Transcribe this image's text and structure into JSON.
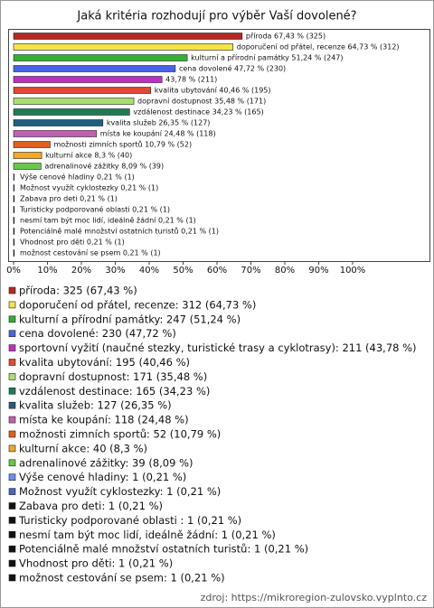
{
  "chart_data": {
    "type": "bar",
    "orientation": "horizontal",
    "title": "Jaká kritéria rozhodují pro výběr Vaší dovolené?",
    "values": [
      67.43,
      64.73,
      51.24,
      47.72,
      43.78,
      40.46,
      35.48,
      34.23,
      26.35,
      24.48,
      10.79,
      8.3,
      8.09,
      0.21,
      0.21,
      0.21,
      0.21,
      0.21,
      0.21,
      0.21,
      0.21
    ],
    "value_labels": [
      "příroda 67,43 % (325)",
      "doporučení od přátel, recenze 64,73 % (312)",
      "kulturní a přírodní památky 51,24 % (247)",
      "cena dovolené 47,72 % (230)",
      "43,78 % (211)",
      "kvalita ubytování 40,46 % (195)",
      "dopravní dostupnost 35,48 % (171)",
      "vzdálenost destinace 34,23 % (165)",
      "kvalita služeb 26,35 % (127)",
      "místa ke koupání 24,48 % (118)",
      "možnosti zimních sportů 10,79 % (52)",
      "kulturní akce 8,3 % (40)",
      "adrenalinové zážitky 8,09 % (39)",
      "Výše cenové hladiny 0,21 % (1)",
      "Možnost využít cyklostezky 0,21 % (1)",
      "Zabava pro deti 0,21 % (1)",
      "Turisticky podporované oblasti  0,21 % (1)",
      "nesmí tam být moc lidí, ideálně žádní  0,21 % (1)",
      "Potenciálně malé množství ostatních turistů 0,21 % (1)",
      "Vhodnost pro děti 0,21 % (1)",
      "možnost cestování se psem 0,21 % (1)"
    ],
    "legend_labels": [
      "příroda: 325 (67,43 %)",
      "doporučení od přátel, recenze: 312 (64,73 %)",
      "kulturní a přírodní památky: 247 (51,24 %)",
      "cena dovolené: 230 (47,72 %)",
      "sportovní vyžití (naučné stezky, turistické trasy a cyklotrasy): 211 (43,78 %)",
      "kvalita ubytování: 195 (40,46 %)",
      "dopravní dostupnost: 171 (35,48 %)",
      "vzdálenost destinace: 165 (34,23 %)",
      "kvalita služeb: 127 (26,35 %)",
      "místa ke koupání: 118 (24,48 %)",
      "možnosti zimních sportů: 52 (10,79 %)",
      "kulturní akce: 40 (8,3 %)",
      "adrenalinové zážitky: 39 (8,09 %)",
      "Výše cenové hladiny: 1 (0,21 %)",
      "Možnost využít cyklostezky: 1 (0,21 %)",
      "Zabava pro deti: 1 (0,21 %)",
      "Turisticky podporované oblasti : 1 (0,21 %)",
      "nesmí tam být moc lidí, ideálně žádní: 1 (0,21 %)",
      "Potenciálně malé množství ostatních turistů: 1 (0,21 %)",
      "Vhodnost pro děti: 1 (0,21 %)",
      "možnost cestování se psem: 1 (0,21 %)"
    ],
    "colors": [
      "#b82820",
      "#f4e44c",
      "#34b034",
      "#4466e0",
      "#c030c0",
      "#e04a30",
      "#a8e070",
      "#207a58",
      "#205e80",
      "#c060b0",
      "#e06020",
      "#f0a828",
      "#68c848",
      "#6c8cf0",
      "#4c64c0",
      "#111111",
      "#111111",
      "#111111",
      "#111111",
      "#111111",
      "#111111"
    ],
    "xlim": [
      0,
      122
    ],
    "xticks": [
      {
        "value": 0,
        "label": "0%"
      },
      {
        "value": 10,
        "label": "10%"
      },
      {
        "value": 20,
        "label": "20%"
      },
      {
        "value": 30,
        "label": "30%"
      },
      {
        "value": 40,
        "label": "40%"
      },
      {
        "value": 50,
        "label": "50%"
      },
      {
        "value": 60,
        "label": "60%"
      },
      {
        "value": 70,
        "label": "70%"
      },
      {
        "value": 80,
        "label": "80%"
      },
      {
        "value": 90,
        "label": "90%"
      },
      {
        "value": 100,
        "label": "100%"
      }
    ],
    "source": "zdroj: https://mikroregion-zulovsko.vyplnto.cz"
  }
}
